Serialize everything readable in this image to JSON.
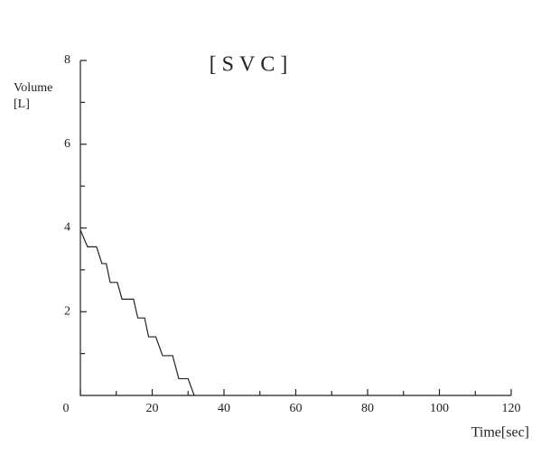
{
  "chart_data": {
    "type": "line",
    "title": "[SVC]",
    "xlabel": "Time[sec]",
    "ylabel": [
      "Volume",
      "[L]"
    ],
    "x": [
      0,
      2,
      4.5,
      6,
      7.2,
      8.3,
      10.3,
      11.6,
      14.8,
      16,
      17.9,
      19,
      21,
      22.9,
      25.7,
      27.4,
      30,
      31.7
    ],
    "series": [
      {
        "color": "#222222",
        "values": [
          3.95,
          3.55,
          3.55,
          3.15,
          3.15,
          2.7,
          2.7,
          2.3,
          2.3,
          1.85,
          1.85,
          1.4,
          1.4,
          0.95,
          0.95,
          0.4,
          0.4,
          0
        ]
      }
    ],
    "xlim": [
      0,
      120
    ],
    "xticks": [
      0,
      20,
      40,
      60,
      80,
      100,
      120
    ],
    "xminorticks": [
      10,
      30,
      50,
      70,
      90,
      110
    ],
    "ylim": [
      0,
      8
    ],
    "yticks": [
      2,
      4,
      6,
      8
    ],
    "yminorticks": [
      1,
      3,
      5,
      7
    ]
  }
}
